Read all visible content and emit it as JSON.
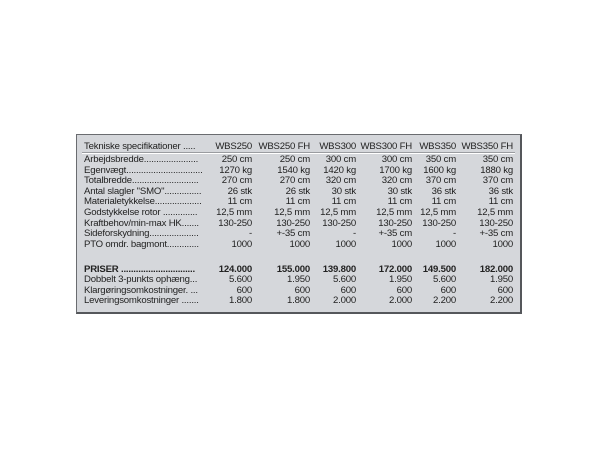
{
  "header": {
    "label": "Tekniske specifikationer .....",
    "models": [
      "WBS250",
      "WBS250 FH",
      "WBS300",
      "WBS300 FH",
      "WBS350",
      "WBS350 FH"
    ]
  },
  "specs": [
    {
      "label": "Arbejdsbredde......................",
      "values": [
        "250 cm",
        "250 cm",
        "300 cm",
        "300 cm",
        "350 cm",
        "350 cm"
      ]
    },
    {
      "label": "Egenvægt...............................",
      "values": [
        "1270 kg",
        "1540 kg",
        "1420 kg",
        "1700 kg",
        "1600 kg",
        "1880 kg"
      ]
    },
    {
      "label": "Totalbredde...........................",
      "values": [
        "270 cm",
        "270 cm",
        "320 cm",
        "320 cm",
        "370 cm",
        "370 cm"
      ]
    },
    {
      "label": "Antal slagler \"SMO\"...............",
      "values": [
        "26 stk",
        "26 stk",
        "30 stk",
        "30 stk",
        "36 stk",
        "36 stk"
      ]
    },
    {
      "label": "Materialetykkelse...................",
      "values": [
        "11 cm",
        "11 cm",
        "11 cm",
        "11 cm",
        "11 cm",
        "11 cm"
      ]
    },
    {
      "label": "Godstykkelse rotor ..............",
      "values": [
        "12,5 mm",
        "12,5 mm",
        "12,5 mm",
        "12,5 mm",
        "12,5 mm",
        "12,5 mm"
      ]
    },
    {
      "label": "Kraftbehov/min-max HK.......",
      "values": [
        "130-250",
        "130-250",
        "130-250",
        "130-250",
        "130-250",
        "130-250"
      ]
    },
    {
      "label": "Sideforskydning....................",
      "values": [
        "-",
        "+-35 cm",
        "-",
        "+-35 cm",
        "-",
        "+-35 cm"
      ]
    },
    {
      "label": "PTO omdr. bagmont.............",
      "values": [
        "1000",
        "1000",
        "1000",
        "1000",
        "1000",
        "1000"
      ]
    }
  ],
  "prices": [
    {
      "label": "PRISER ..............................",
      "bold": true,
      "values": [
        "124.000",
        "155.000",
        "139.800",
        "172.000",
        "149.500",
        "182.000"
      ]
    },
    {
      "label": "Dobbelt 3-punkts ophæng...",
      "values": [
        "5.600",
        "1.950",
        "5.600",
        "1.950",
        "5.600",
        "1.950"
      ]
    },
    {
      "label": "Klargøringsomkostninger. ...",
      "values": [
        "600",
        "600",
        "600",
        "600",
        "600",
        "600"
      ]
    },
    {
      "label": "Leveringsomkostninger .......",
      "values": [
        "1.800",
        "1.800",
        "2.000",
        "2.000",
        "2.200",
        "2.200"
      ]
    }
  ]
}
